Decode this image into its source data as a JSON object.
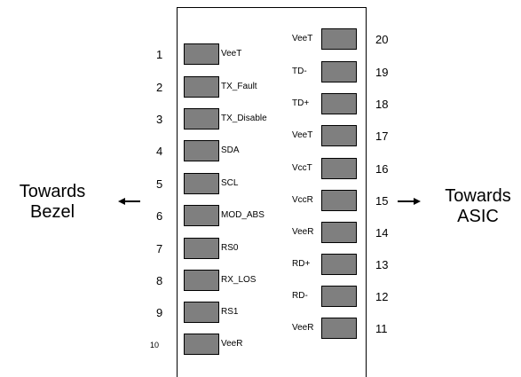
{
  "left_pins": [
    {
      "number": "1",
      "signal": "VeeT"
    },
    {
      "number": "2",
      "signal": "TX_Fault"
    },
    {
      "number": "3",
      "signal": "TX_Disable"
    },
    {
      "number": "4",
      "signal": "SDA"
    },
    {
      "number": "5",
      "signal": "SCL"
    },
    {
      "number": "6",
      "signal": "MOD_ABS"
    },
    {
      "number": "7",
      "signal": "RS0"
    },
    {
      "number": "8",
      "signal": "RX_LOS"
    },
    {
      "number": "9",
      "signal": "RS1"
    },
    {
      "number": "10",
      "signal": "VeeR"
    }
  ],
  "right_pins": [
    {
      "number": "20",
      "signal": "VeeT"
    },
    {
      "number": "19",
      "signal": "TD-"
    },
    {
      "number": "18",
      "signal": "TD+"
    },
    {
      "number": "17",
      "signal": "VeeT"
    },
    {
      "number": "16",
      "signal": "VccT"
    },
    {
      "number": "15",
      "signal": "VccR"
    },
    {
      "number": "14",
      "signal": "VeeR"
    },
    {
      "number": "13",
      "signal": "RD+"
    },
    {
      "number": "12",
      "signal": "RD-"
    },
    {
      "number": "11",
      "signal": "VeeR"
    }
  ],
  "left_side": {
    "line1": "Towards",
    "line2": "Bezel"
  },
  "right_side": {
    "line1": "Towards",
    "line2": "ASIC"
  },
  "colors": {
    "pad_fill": "#7f7f7f",
    "outline": "#000000"
  }
}
